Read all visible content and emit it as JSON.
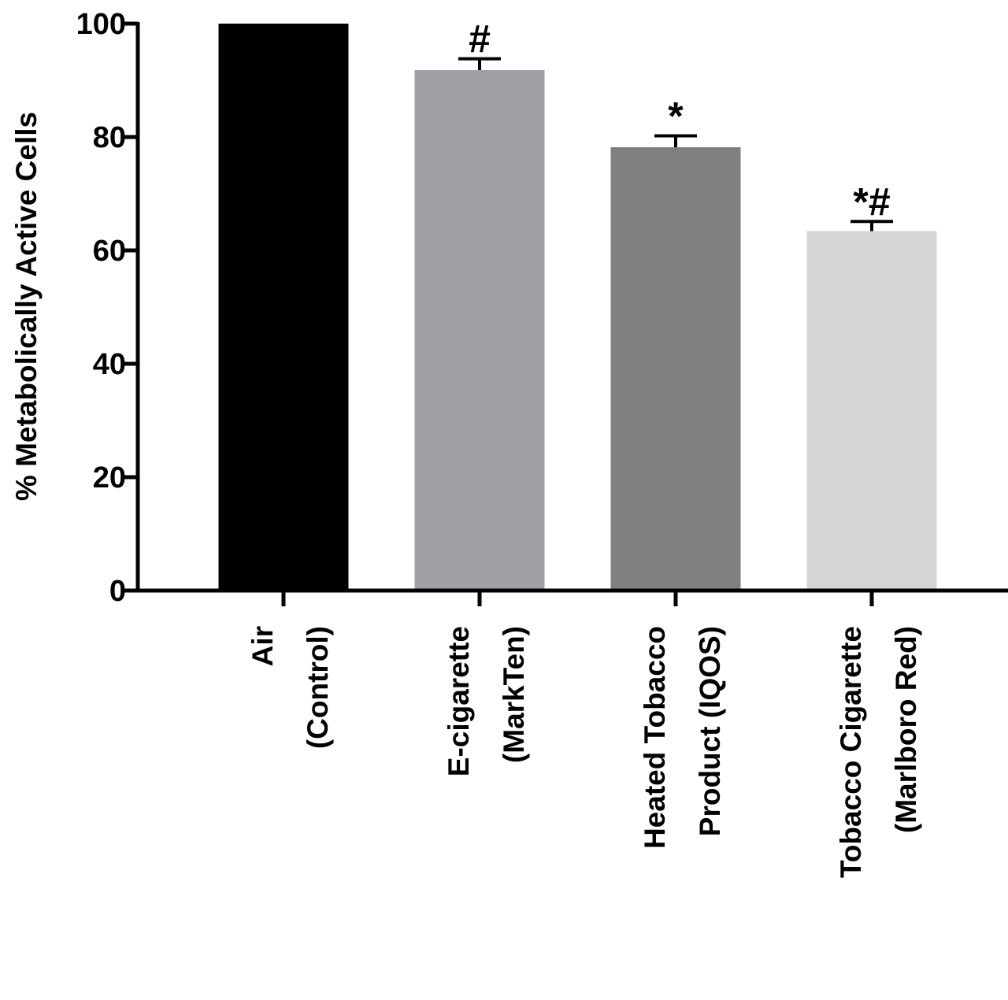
{
  "chart_data": {
    "type": "bar",
    "ylabel": "% Metabolically Active Cells",
    "ylim": [
      0,
      100
    ],
    "yticks": [
      "0",
      "20",
      "40",
      "60",
      "80",
      "100"
    ],
    "categories": [
      {
        "lines": [
          "Air",
          "(Control)"
        ]
      },
      {
        "lines": [
          "E-cigarette",
          "(MarkTen)"
        ]
      },
      {
        "lines": [
          "Heated Tobacco",
          "Product (IQOS)"
        ]
      },
      {
        "lines": [
          "Tobacco Cigarette",
          "(Marlboro Red)"
        ]
      }
    ],
    "values": [
      100,
      91.8,
      78.2,
      63.4
    ],
    "errors": [
      0,
      2.0,
      2.0,
      1.7
    ],
    "annotations": [
      "",
      "#",
      "*",
      "*#"
    ],
    "colors": [
      "#000000",
      "#a0a0a4",
      "#808080",
      "#d6d6d6"
    ],
    "grid": false,
    "legend": "none"
  }
}
